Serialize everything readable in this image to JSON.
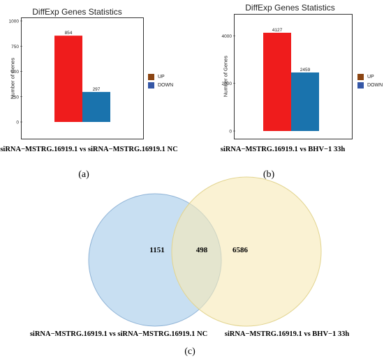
{
  "chart_data": [
    {
      "type": "bar",
      "panel": "a",
      "title": "DiffExp Genes Statistics",
      "ylabel": "Number of Genes",
      "ylim": [
        0,
        1000
      ],
      "yticks": [
        "0",
        "250",
        "500",
        "750",
        "1000"
      ],
      "series": [
        {
          "name": "UP",
          "values": [
            854
          ],
          "labels": [
            "854"
          ]
        },
        {
          "name": "DOWN",
          "values": [
            297
          ],
          "labels": [
            "297"
          ]
        }
      ],
      "legend": {
        "position": "right",
        "items": [
          "UP",
          "DOWN"
        ]
      },
      "subtitle": "siRNA−MSTRG.16919.1 vs siRNA−MSTRG.16919.1 NC",
      "panel_label": "(a)"
    },
    {
      "type": "bar",
      "panel": "b",
      "title": "DiffExp Genes Statistics",
      "ylabel": "Number of Genes",
      "ylim": [
        0,
        4800
      ],
      "yticks": [
        "0",
        "2000",
        "4000"
      ],
      "series": [
        {
          "name": "UP",
          "values": [
            4127
          ],
          "labels": [
            "4127"
          ]
        },
        {
          "name": "DOWN",
          "values": [
            2459
          ],
          "labels": [
            "2459"
          ]
        }
      ],
      "legend": {
        "position": "right",
        "items": [
          "UP",
          "DOWN"
        ]
      },
      "subtitle": "siRNA−MSTRG.16919.1 vs BHV−1 33h",
      "panel_label": "(b)"
    },
    {
      "type": "venn",
      "panel": "c",
      "sets": [
        {
          "name": "siRNA−MSTRG.16919.1 vs siRNA−MSTRG.16919.1 NC",
          "only": "1151"
        },
        {
          "name": "siRNA−MSTRG.16919.1 vs BHV−1 33h",
          "only": "6586"
        }
      ],
      "intersection": "498",
      "panel_label": "(c)"
    }
  ],
  "colors": {
    "up_bar": "#ef1c1c",
    "down_bar": "#1a73ad",
    "up_legend": "#8b4513",
    "down_legend": "#3557a6",
    "venn_left": "#b9d6ee",
    "venn_right": "#f7eab5",
    "venn_overlap": "#d6d3b8"
  }
}
